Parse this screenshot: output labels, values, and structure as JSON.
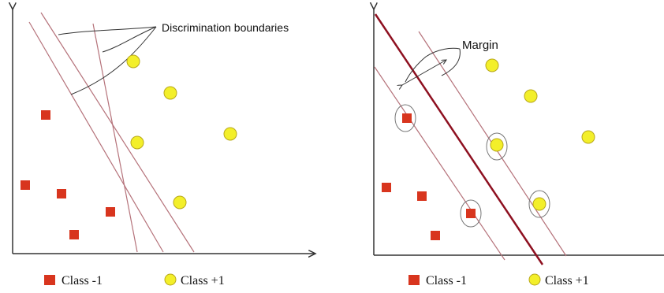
{
  "left_panel": {
    "annotation": "Discrimination boundaries",
    "negative_points": [
      {
        "x": 58,
        "y": 146
      },
      {
        "x": 32,
        "y": 235
      },
      {
        "x": 78,
        "y": 246
      },
      {
        "x": 140,
        "y": 269
      },
      {
        "x": 94,
        "y": 298
      }
    ],
    "positive_points": [
      {
        "x": 169,
        "y": 78
      },
      {
        "x": 216,
        "y": 118
      },
      {
        "x": 292,
        "y": 170
      },
      {
        "x": 174,
        "y": 181
      },
      {
        "x": 228,
        "y": 257
      }
    ],
    "boundaries": [
      {
        "x1": 37,
        "y1": 28,
        "x2": 207,
        "y2": 320
      },
      {
        "x1": 52,
        "y1": 16,
        "x2": 246,
        "y2": 320
      },
      {
        "x1": 118,
        "y1": 30,
        "x2": 174,
        "y2": 320
      }
    ],
    "legend": {
      "negative_label": "Class -1",
      "positive_label": "Class +1"
    }
  },
  "right_panel": {
    "annotation": "Margin",
    "negative_points": [
      {
        "x": 516,
        "y": 150
      },
      {
        "x": 490,
        "y": 238
      },
      {
        "x": 535,
        "y": 249
      },
      {
        "x": 597,
        "y": 271
      },
      {
        "x": 552,
        "y": 299
      }
    ],
    "positive_points": [
      {
        "x": 624,
        "y": 83
      },
      {
        "x": 673,
        "y": 122
      },
      {
        "x": 746,
        "y": 174
      },
      {
        "x": 630,
        "y": 184
      },
      {
        "x": 684,
        "y": 259
      }
    ],
    "support_vectors": [
      {
        "x": 514,
        "y": 150
      },
      {
        "x": 597,
        "y": 271
      },
      {
        "x": 630,
        "y": 186
      },
      {
        "x": 684,
        "y": 259
      }
    ],
    "boundary": {
      "x1": 476,
      "y1": 18,
      "x2": 688,
      "y2": 336
    },
    "margin_lines": [
      {
        "x1": 475,
        "y1": 85,
        "x2": 640,
        "y2": 330
      },
      {
        "x1": 531,
        "y1": 40,
        "x2": 718,
        "y2": 325
      }
    ],
    "legend": {
      "negative_label": "Class -1",
      "positive_label": "Class +1"
    }
  },
  "colors": {
    "negative": "#d8351e",
    "positive": "#f3ef2a",
    "positive_stroke": "#b8a81a",
    "boundary_thin": "#b5727a",
    "boundary_main": "#8e1020",
    "axis": "#333333"
  }
}
